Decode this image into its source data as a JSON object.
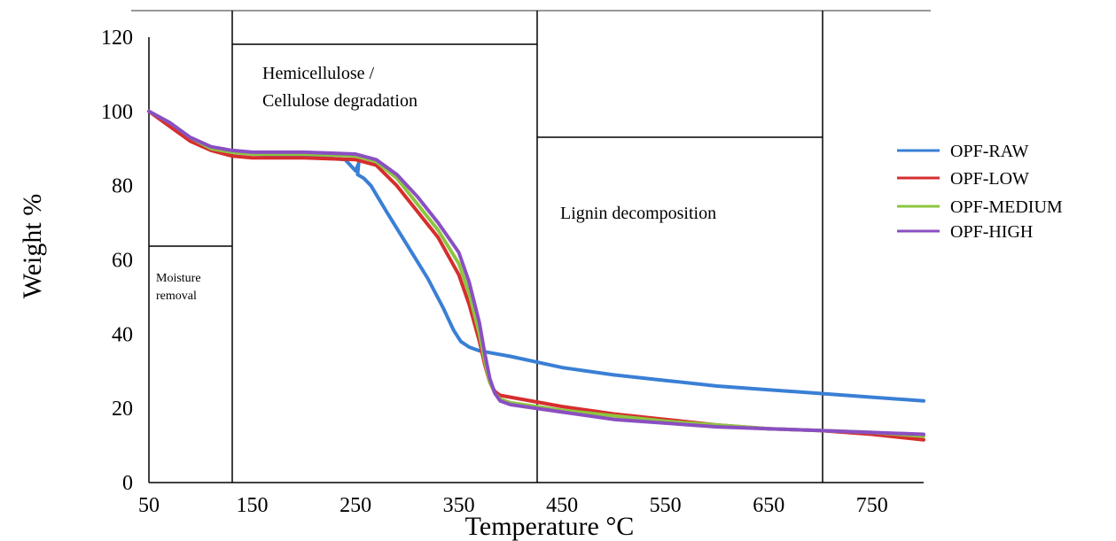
{
  "chart_data": {
    "type": "line",
    "xlabel": "Temperature  °C",
    "ylabel": "Weight %",
    "xlim": [
      50,
      800
    ],
    "ylim": [
      0,
      120
    ],
    "xticks": [
      50,
      150,
      250,
      350,
      450,
      550,
      650,
      750
    ],
    "yticks": [
      0,
      20,
      40,
      60,
      80,
      100,
      120
    ],
    "grid": false,
    "legend_position": "right",
    "series": [
      {
        "name": "OPF-RAW",
        "color": "#3a7fd5",
        "x": [
          50,
          70,
          90,
          110,
          130,
          150,
          200,
          240,
          250,
          253,
          252,
          258,
          265,
          280,
          300,
          320,
          335,
          345,
          352,
          360,
          370,
          380,
          400,
          450,
          500,
          550,
          600,
          650,
          700,
          750,
          800
        ],
        "y": [
          100,
          97,
          93,
          90.5,
          89,
          88.5,
          88,
          87,
          84,
          86,
          83,
          82,
          80,
          73,
          64,
          55,
          47,
          41,
          38,
          36.5,
          35.5,
          35,
          34,
          31,
          29,
          27.5,
          26,
          25,
          24,
          23,
          22
        ]
      },
      {
        "name": "OPF-LOW",
        "color": "#d62e2e",
        "x": [
          50,
          70,
          90,
          110,
          130,
          150,
          200,
          250,
          270,
          290,
          310,
          330,
          350,
          360,
          370,
          375,
          380,
          385,
          390,
          400,
          450,
          500,
          550,
          600,
          650,
          700,
          750,
          800
        ],
        "y": [
          100,
          96,
          92,
          89.5,
          88,
          87.5,
          87.5,
          87,
          85.5,
          80,
          73,
          66,
          56,
          48,
          38,
          32,
          27,
          24.5,
          23.5,
          23,
          20.5,
          18.5,
          17,
          15.5,
          14.5,
          14,
          13,
          11.5
        ]
      },
      {
        "name": "OPF-MEDIUM",
        "color": "#8cc63f",
        "x": [
          50,
          70,
          90,
          110,
          130,
          150,
          200,
          250,
          270,
          290,
          310,
          330,
          350,
          360,
          370,
          375,
          380,
          385,
          390,
          400,
          450,
          500,
          550,
          600,
          650,
          700,
          750,
          800
        ],
        "y": [
          100,
          97,
          93,
          90,
          89,
          88.5,
          88.5,
          88,
          86.5,
          82,
          75,
          68,
          59,
          51,
          40,
          33,
          27,
          24,
          22.5,
          21.5,
          19.5,
          18,
          16.5,
          15.5,
          14.5,
          14,
          13.5,
          12.5
        ]
      },
      {
        "name": "OPF-HIGH",
        "color": "#8a4fc2",
        "x": [
          50,
          70,
          90,
          110,
          130,
          150,
          200,
          250,
          270,
          290,
          310,
          330,
          350,
          360,
          370,
          375,
          380,
          385,
          390,
          400,
          450,
          500,
          550,
          600,
          650,
          700,
          750,
          800
        ],
        "y": [
          100,
          97,
          93,
          90.5,
          89.5,
          89,
          89,
          88.5,
          87,
          83,
          77,
          70,
          62,
          54,
          43,
          35,
          28,
          24,
          22,
          21,
          19,
          17,
          16,
          15,
          14.5,
          14,
          13.5,
          13
        ]
      }
    ],
    "annotations": {
      "moisture": [
        "Moisture",
        "removal"
      ],
      "hemicellulose": [
        "Hemicellulose /",
        "Cellulose degradation"
      ],
      "lignin": "Lignin decomposition"
    }
  }
}
